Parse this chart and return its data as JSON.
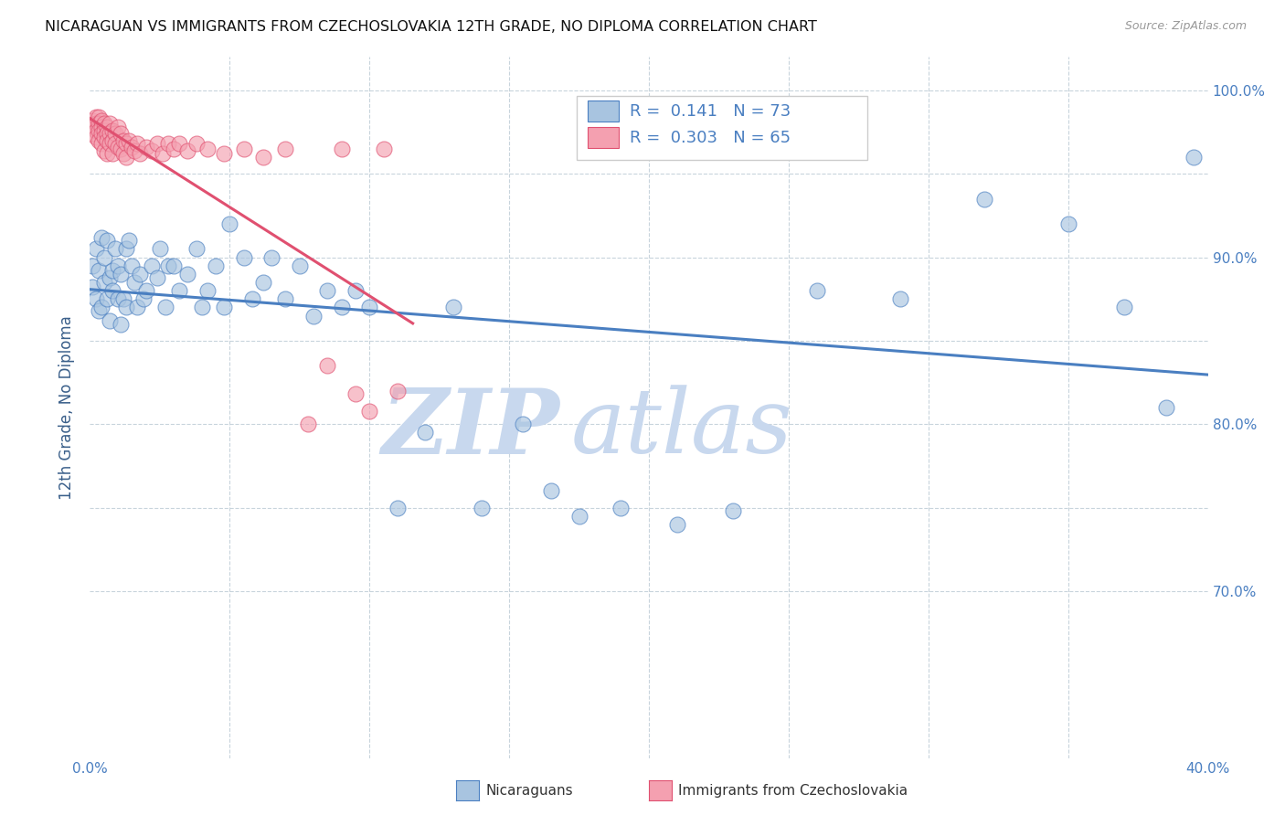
{
  "title": "NICARAGUAN VS IMMIGRANTS FROM CZECHOSLOVAKIA 12TH GRADE, NO DIPLOMA CORRELATION CHART",
  "source": "Source: ZipAtlas.com",
  "ylabel": "12th Grade, No Diploma",
  "x_min": 0.0,
  "x_max": 0.4,
  "y_min": 0.6,
  "y_max": 1.02,
  "blue_color": "#a8c4e0",
  "pink_color": "#f4a0b0",
  "blue_line_color": "#4a7fc1",
  "pink_line_color": "#e05070",
  "R_blue": 0.141,
  "N_blue": 73,
  "R_pink": 0.303,
  "N_pink": 65,
  "blue_scatter_x": [
    0.001,
    0.001,
    0.002,
    0.002,
    0.003,
    0.003,
    0.004,
    0.004,
    0.005,
    0.005,
    0.006,
    0.006,
    0.007,
    0.007,
    0.008,
    0.008,
    0.009,
    0.01,
    0.01,
    0.011,
    0.011,
    0.012,
    0.013,
    0.013,
    0.014,
    0.015,
    0.016,
    0.017,
    0.018,
    0.019,
    0.02,
    0.022,
    0.024,
    0.025,
    0.027,
    0.028,
    0.03,
    0.032,
    0.035,
    0.038,
    0.04,
    0.042,
    0.045,
    0.048,
    0.05,
    0.055,
    0.058,
    0.062,
    0.065,
    0.07,
    0.075,
    0.08,
    0.085,
    0.09,
    0.095,
    0.1,
    0.11,
    0.12,
    0.13,
    0.14,
    0.155,
    0.165,
    0.175,
    0.19,
    0.21,
    0.23,
    0.26,
    0.29,
    0.32,
    0.35,
    0.37,
    0.385,
    0.395
  ],
  "blue_scatter_y": [
    0.882,
    0.895,
    0.875,
    0.905,
    0.868,
    0.892,
    0.87,
    0.912,
    0.885,
    0.9,
    0.875,
    0.91,
    0.888,
    0.862,
    0.892,
    0.88,
    0.905,
    0.875,
    0.895,
    0.86,
    0.89,
    0.875,
    0.905,
    0.87,
    0.91,
    0.895,
    0.885,
    0.87,
    0.89,
    0.875,
    0.88,
    0.895,
    0.888,
    0.905,
    0.87,
    0.895,
    0.895,
    0.88,
    0.89,
    0.905,
    0.87,
    0.88,
    0.895,
    0.87,
    0.92,
    0.9,
    0.875,
    0.885,
    0.9,
    0.875,
    0.895,
    0.865,
    0.88,
    0.87,
    0.88,
    0.87,
    0.75,
    0.795,
    0.87,
    0.75,
    0.8,
    0.76,
    0.745,
    0.75,
    0.74,
    0.748,
    0.88,
    0.875,
    0.935,
    0.92,
    0.87,
    0.81,
    0.96
  ],
  "pink_scatter_x": [
    0.001,
    0.001,
    0.001,
    0.002,
    0.002,
    0.002,
    0.002,
    0.003,
    0.003,
    0.003,
    0.003,
    0.004,
    0.004,
    0.004,
    0.004,
    0.005,
    0.005,
    0.005,
    0.005,
    0.006,
    0.006,
    0.006,
    0.006,
    0.007,
    0.007,
    0.007,
    0.008,
    0.008,
    0.008,
    0.009,
    0.009,
    0.01,
    0.01,
    0.011,
    0.011,
    0.012,
    0.012,
    0.013,
    0.013,
    0.014,
    0.015,
    0.016,
    0.017,
    0.018,
    0.02,
    0.022,
    0.024,
    0.026,
    0.028,
    0.03,
    0.032,
    0.035,
    0.038,
    0.042,
    0.048,
    0.055,
    0.062,
    0.07,
    0.078,
    0.085,
    0.09,
    0.095,
    0.1,
    0.105,
    0.11
  ],
  "pink_scatter_y": [
    0.982,
    0.978,
    0.974,
    0.984,
    0.98,
    0.976,
    0.972,
    0.984,
    0.98,
    0.976,
    0.97,
    0.982,
    0.978,
    0.974,
    0.968,
    0.98,
    0.976,
    0.972,
    0.964,
    0.978,
    0.974,
    0.97,
    0.962,
    0.98,
    0.974,
    0.968,
    0.976,
    0.97,
    0.962,
    0.974,
    0.968,
    0.978,
    0.966,
    0.974,
    0.965,
    0.97,
    0.962,
    0.968,
    0.96,
    0.97,
    0.966,
    0.964,
    0.968,
    0.962,
    0.966,
    0.964,
    0.968,
    0.962,
    0.968,
    0.965,
    0.968,
    0.964,
    0.968,
    0.965,
    0.962,
    0.965,
    0.96,
    0.965,
    0.8,
    0.835,
    0.965,
    0.818,
    0.808,
    0.965,
    0.82
  ],
  "watermark_zip": "ZIP",
  "watermark_atlas": "atlas",
  "watermark_color": "#c8d8ee",
  "background_color": "#ffffff",
  "grid_color": "#c8d4dc"
}
